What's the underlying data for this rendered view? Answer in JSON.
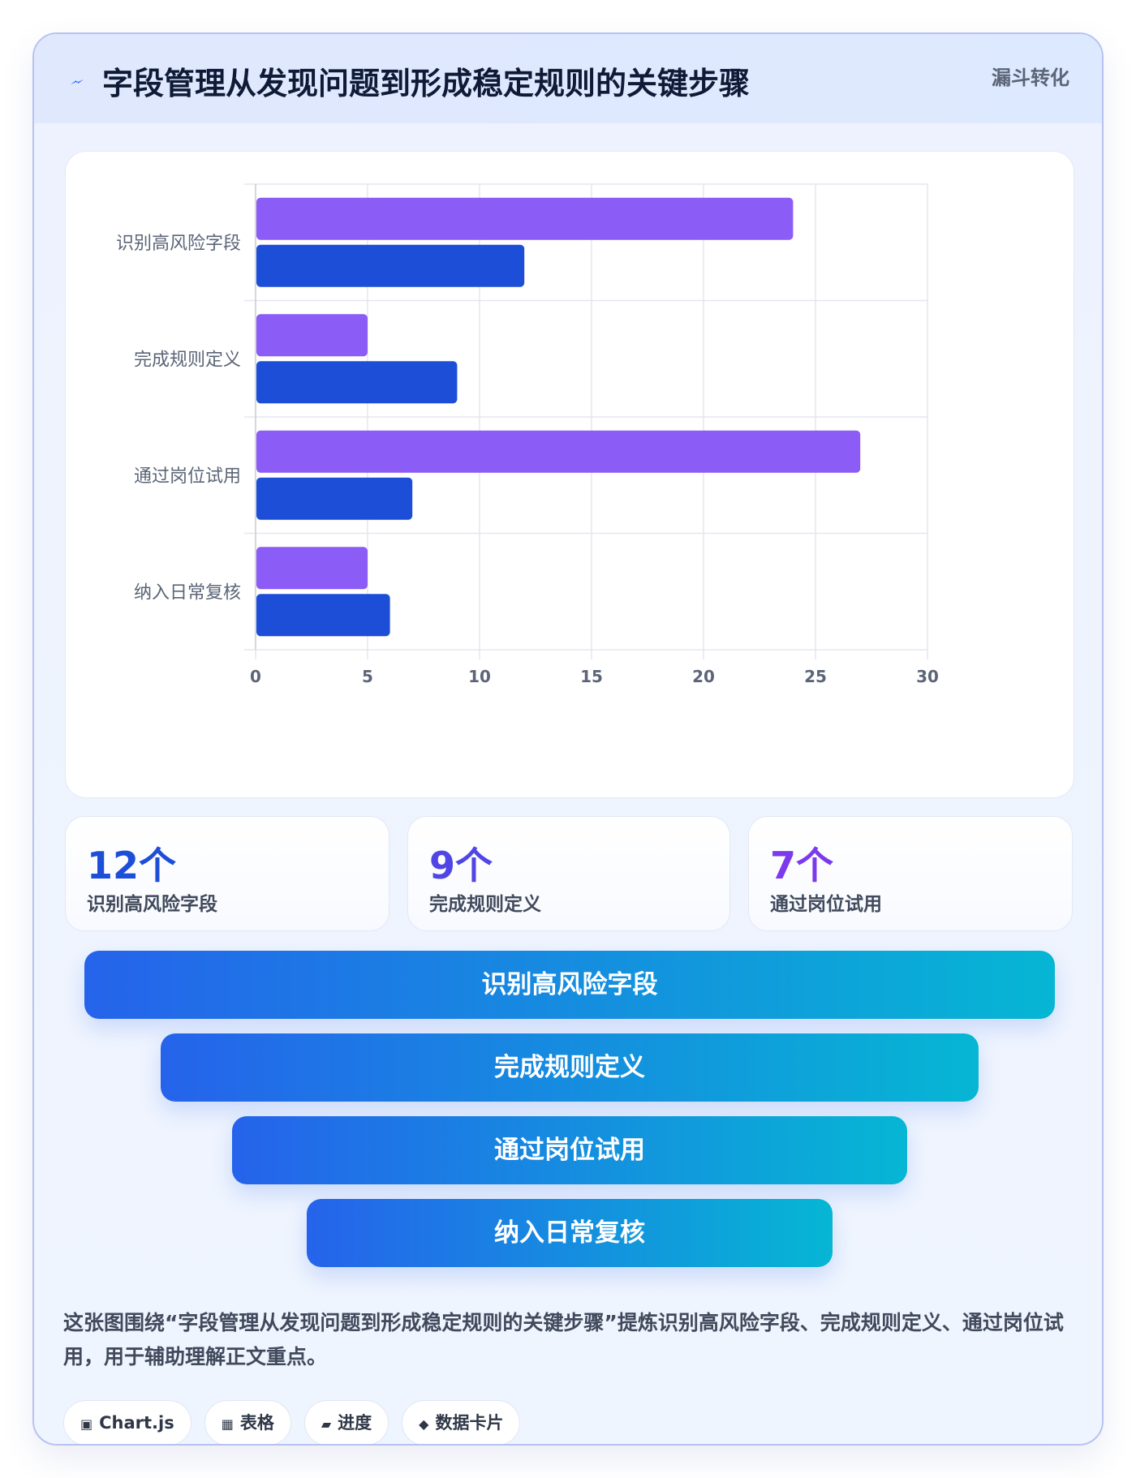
{
  "header": {
    "title": "字段管理从发现问题到形成稳定规则的关键步骤",
    "badge": "漏斗转化",
    "icon": "lightning-icon"
  },
  "chart_data": {
    "type": "bar",
    "orientation": "horizontal",
    "categories": [
      "识别高风险字段",
      "完成规则定义",
      "通过岗位试用",
      "纳入日常复核"
    ],
    "series": [
      {
        "values": [
          24,
          5,
          27,
          5
        ],
        "color": "#8b5cf6"
      },
      {
        "values": [
          12,
          9,
          7,
          6
        ],
        "color": "#1d4ed8"
      }
    ],
    "xlim": [
      0,
      30
    ],
    "x_ticks": [
      "0",
      "5",
      "10",
      "15",
      "20",
      "25",
      "30"
    ],
    "grid": true,
    "legend": false,
    "title": "",
    "xlabel": "",
    "ylabel": ""
  },
  "stats": [
    {
      "value": "12个",
      "label": "识别高风险字段",
      "color": "#1d4ed8"
    },
    {
      "value": "9个",
      "label": "完成规则定义",
      "color": "#4f46e5"
    },
    {
      "value": "7个",
      "label": "通过岗位试用",
      "color": "#7c3aed"
    }
  ],
  "funnel": {
    "steps": [
      "识别高风险字段",
      "完成规则定义",
      "通过岗位试用",
      "纳入日常复核"
    ]
  },
  "caption": "这张图围绕“字段管理从发现问题到形成稳定规则的关键步骤”提炼识别高风险字段、完成规则定义、通过岗位试用，用于辅助理解正文重点。",
  "tags": [
    {
      "icon": "chip-icon",
      "glyph": "▣",
      "label": "Chart.js"
    },
    {
      "icon": "table-icon",
      "glyph": "▦",
      "label": "表格"
    },
    {
      "icon": "progress-icon",
      "glyph": "▰",
      "label": "进度"
    },
    {
      "icon": "diamond-icon",
      "glyph": "◆",
      "label": "数据卡片"
    }
  ]
}
